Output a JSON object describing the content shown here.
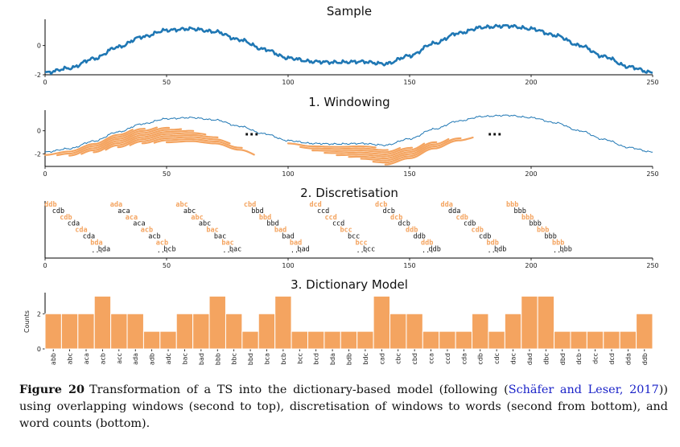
{
  "colors": {
    "line": "#1f77b4",
    "accent": "#f4a460",
    "bar": "#f4a460",
    "text": "#111111",
    "cite": "#1a22c8"
  },
  "panels": {
    "sample": {
      "title": "Sample"
    },
    "windowing": {
      "title": "1. Windowing",
      "ellipsis": "..."
    },
    "discretisation": {
      "title": "2. Discretisation",
      "ellipsis": "..."
    },
    "dictionary": {
      "title": "3. Dictionary Model",
      "ylabel": "Counts"
    }
  },
  "caption": {
    "label": "Figure 20",
    "text_before": "Transformation of a TS into the dictionary-based model (following (",
    "cite": "Schäfer and Leser, 2017",
    "text_after": ")) using overlapping windows (second to top), discretisation of windows to words (second from bottom), and word counts (bottom)."
  },
  "chart_data": [
    {
      "type": "line",
      "title": "Sample",
      "xlim": [
        0,
        250
      ],
      "ylim": [
        -2,
        1.8
      ],
      "xticks": [
        0,
        50,
        100,
        150,
        200,
        250
      ],
      "yticks": [
        -2,
        0
      ],
      "series": [
        {
          "x": [
            0,
            10,
            20,
            30,
            40,
            50,
            60,
            70,
            80,
            90,
            100,
            110,
            120,
            130,
            140,
            150,
            160,
            170,
            180,
            190,
            200,
            210,
            220,
            230,
            240,
            250
          ],
          "y": [
            -1.85,
            -1.55,
            -0.9,
            -0.1,
            0.6,
            1.05,
            1.15,
            0.95,
            0.4,
            -0.25,
            -0.85,
            -1.1,
            -1.15,
            -1.1,
            -1.25,
            -0.7,
            0.15,
            0.85,
            1.25,
            1.35,
            1.15,
            0.7,
            0.0,
            -0.75,
            -1.45,
            -1.85
          ]
        }
      ]
    },
    {
      "type": "line",
      "title": "1. Windowing",
      "xlim": [
        0,
        250
      ],
      "ylim": [
        -3.1,
        1.8
      ],
      "xticks": [
        0,
        50,
        100,
        150,
        200,
        250
      ],
      "yticks": [
        -2,
        0
      ],
      "window_starts": [
        0,
        5,
        10,
        15,
        20,
        25,
        30,
        35,
        40,
        45,
        50,
        100,
        105,
        110,
        115,
        120,
        125,
        130,
        135,
        140
      ],
      "window_length": 36
    },
    {
      "type": "table",
      "title": "2. Discretisation",
      "xlim": [
        0,
        250
      ],
      "xticks": [
        0,
        50,
        100,
        150,
        200,
        250
      ],
      "columns": [
        {
          "x": 13,
          "words": [
            "ddb",
            "cdb",
            "cdb",
            "cda",
            "cda",
            "cda",
            "bda",
            "bda"
          ],
          "orange": 4
        },
        {
          "x": 40,
          "words": [
            "ada",
            "aca",
            "aca",
            "aca",
            "acb",
            "acb",
            "acb",
            "bcb"
          ],
          "orange": 4
        },
        {
          "x": 67,
          "words": [
            "abc",
            "abc",
            "abc",
            "abc",
            "bac",
            "bac",
            "bac",
            "bac"
          ],
          "orange": 4
        },
        {
          "x": 95,
          "words": [
            "cbd",
            "bbd",
            "bbd",
            "bbd",
            "bad",
            "bad",
            "bad",
            "bad"
          ],
          "orange": 4
        },
        {
          "x": 122,
          "words": [
            "dcd",
            "ccd",
            "ccd",
            "ccd",
            "bcc",
            "bcc",
            "bcc",
            "bcc"
          ],
          "orange": 4
        },
        {
          "x": 149,
          "words": [
            "dcb",
            "dcb",
            "dcb",
            "dcb",
            "ddb",
            "ddb",
            "ddb",
            "ddb"
          ],
          "orange": 4
        },
        {
          "x": 176,
          "words": [
            "dda",
            "dda",
            "cdb",
            "cdb",
            "cdb",
            "cdb",
            "bdb",
            "bdb"
          ],
          "orange": 4
        },
        {
          "x": 203,
          "words": [
            "bbb",
            "bbb",
            "bbb",
            "bbb",
            "bbb",
            "bbb",
            "bbb",
            "bbb"
          ],
          "orange": 4
        }
      ]
    },
    {
      "type": "bar",
      "title": "3. Dictionary Model",
      "ylabel": "Counts",
      "ylim": [
        0,
        3.2
      ],
      "yticks": [
        0,
        2
      ],
      "categories": [
        "abb",
        "abc",
        "aca",
        "acb",
        "acc",
        "ada",
        "adb",
        "adc",
        "bac",
        "bad",
        "bbb",
        "bbc",
        "bbd",
        "bca",
        "bcb",
        "bcc",
        "bcd",
        "bda",
        "bdb",
        "bdc",
        "cad",
        "cbc",
        "cbd",
        "cca",
        "ccd",
        "cda",
        "cdb",
        "cdc",
        "dac",
        "dad",
        "dbc",
        "dbd",
        "dcb",
        "dcc",
        "dcd",
        "dda",
        "ddb"
      ],
      "values": [
        2,
        2,
        2,
        3,
        2,
        2,
        1,
        1,
        2,
        2,
        3,
        2,
        1,
        2,
        3,
        1,
        1,
        1,
        1,
        1,
        3,
        2,
        2,
        1,
        1,
        1,
        2,
        1,
        2,
        3,
        3,
        1,
        1,
        1,
        1,
        1,
        2
      ]
    }
  ]
}
